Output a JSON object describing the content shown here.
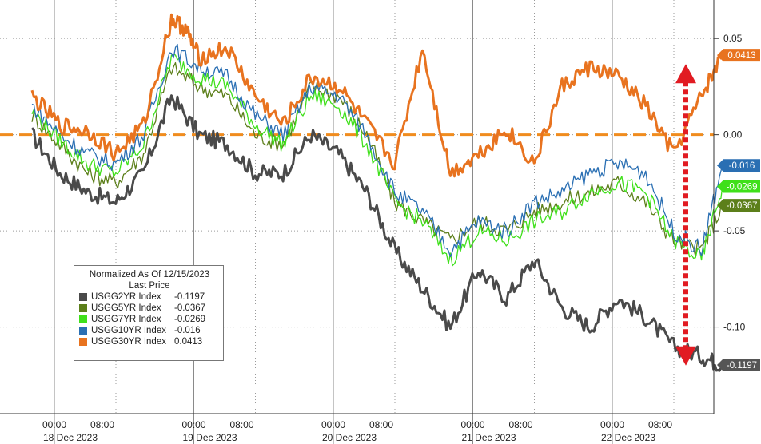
{
  "chart_data": {
    "type": "line",
    "title": "",
    "xlabel": "",
    "ylabel": "",
    "ylim": [
      -0.145,
      0.07
    ],
    "yticks": [
      0.05,
      0.0,
      -0.05,
      -0.1
    ],
    "ytick_labels": [
      "0.05",
      "0.00",
      "-0.05",
      "-0.10"
    ],
    "days": [
      "18 Dec 2023",
      "19 Dec 2023",
      "20 Dec 2023",
      "21 Dec 2023",
      "22 Dec 2023"
    ],
    "xtick_labels": [
      "00:00",
      "08:00",
      "00:00",
      "08:00",
      "00:00",
      "08:00",
      "00:00",
      "08:00",
      "00:00",
      "08:00"
    ],
    "grid": true,
    "reference_line": {
      "y": 0.0,
      "color": "#f08c1e",
      "style": "dashed"
    },
    "legend": {
      "position": "bottom-left",
      "title_line1": "Normalized As Of 12/15/2023",
      "title_line2": "Last Price",
      "entries": [
        {
          "name": "USGG2YR Index",
          "value": "-0.1197",
          "color": "#4a4a4a"
        },
        {
          "name": "USGG5YR Index",
          "value": "-0.0367",
          "color": "#5c7f1a"
        },
        {
          "name": "USGG7YR Index",
          "value": "-0.0269",
          "color": "#3fe01a"
        },
        {
          "name": "USGG10YR Index",
          "value": "-0.016",
          "color": "#2a6fb3"
        },
        {
          "name": "USGG30YR Index",
          "value": "0.0413",
          "color": "#e8731f"
        }
      ]
    },
    "last_value_tags": [
      {
        "label": "0.0413",
        "y": 0.0413,
        "color": "#e8731f"
      },
      {
        "label": "-0.016",
        "y": -0.016,
        "color": "#2a6fb3"
      },
      {
        "label": "-0.0269",
        "y": -0.0269,
        "color": "#3fe01a"
      },
      {
        "label": "-0.0367",
        "y": -0.0367,
        "color": "#5c7f1a"
      },
      {
        "label": "-0.1197",
        "y": -0.1197,
        "color": "#555555"
      }
    ],
    "annotation": {
      "type": "double-arrow",
      "color": "#e11b22",
      "from": 0.04,
      "to": -0.115
    },
    "series": [
      {
        "name": "USGG30YR Index",
        "color": "#e8731f",
        "x": [
          0,
          0.2,
          0.4,
          0.6,
          0.8,
          1.0,
          1.1,
          1.2,
          1.4,
          1.6,
          1.8,
          2.0,
          2.2,
          2.4,
          2.6,
          2.8,
          3.0,
          3.2,
          3.4,
          3.6,
          3.8,
          4.0,
          4.2,
          4.4,
          4.6,
          4.8,
          4.95
        ],
        "y": [
          0.02,
          0.005,
          0.002,
          -0.01,
          0.005,
          0.06,
          0.055,
          0.04,
          0.045,
          0.02,
          0.005,
          0.03,
          0.025,
          0.005,
          -0.015,
          0.045,
          -0.02,
          -0.01,
          0.003,
          -0.015,
          0.025,
          0.035,
          0.03,
          0.015,
          -0.01,
          0.02,
          0.0413
        ]
      },
      {
        "name": "USGG10YR Index",
        "color": "#2a6fb3",
        "x": [
          0,
          0.2,
          0.4,
          0.6,
          0.8,
          1.0,
          1.2,
          1.4,
          1.6,
          1.8,
          2.0,
          2.2,
          2.4,
          2.6,
          2.8,
          3.0,
          3.2,
          3.4,
          3.6,
          3.8,
          4.0,
          4.2,
          4.4,
          4.6,
          4.8,
          4.95
        ],
        "y": [
          0.015,
          0.0,
          -0.01,
          -0.015,
          0.0,
          0.045,
          0.035,
          0.03,
          0.01,
          0.0,
          0.025,
          0.02,
          0.0,
          -0.03,
          -0.04,
          -0.06,
          -0.045,
          -0.05,
          -0.035,
          -0.03,
          -0.02,
          -0.015,
          -0.02,
          -0.05,
          -0.06,
          -0.016
        ]
      },
      {
        "name": "USGG7YR Index",
        "color": "#3fe01a",
        "x": [
          0,
          0.2,
          0.4,
          0.6,
          0.8,
          1.0,
          1.2,
          1.4,
          1.6,
          1.8,
          2.0,
          2.2,
          2.4,
          2.6,
          2.8,
          3.0,
          3.2,
          3.4,
          3.6,
          3.8,
          4.0,
          4.2,
          4.4,
          4.6,
          4.8,
          4.95
        ],
        "y": [
          0.012,
          -0.003,
          -0.015,
          -0.02,
          -0.005,
          0.04,
          0.03,
          0.025,
          0.005,
          -0.005,
          0.02,
          0.015,
          -0.005,
          -0.035,
          -0.045,
          -0.065,
          -0.05,
          -0.055,
          -0.045,
          -0.04,
          -0.03,
          -0.025,
          -0.03,
          -0.055,
          -0.065,
          -0.0269
        ]
      },
      {
        "name": "USGG5YR Index",
        "color": "#5c7f1a",
        "x": [
          0,
          0.2,
          0.4,
          0.6,
          0.8,
          1.0,
          1.2,
          1.4,
          1.6,
          1.8,
          2.0,
          2.2,
          2.4,
          2.6,
          2.8,
          3.0,
          3.2,
          3.4,
          3.6,
          3.8,
          4.0,
          4.2,
          4.4,
          4.6,
          4.8,
          4.95
        ],
        "y": [
          0.01,
          -0.005,
          -0.02,
          -0.025,
          -0.01,
          0.035,
          0.025,
          0.02,
          0.0,
          -0.005,
          0.025,
          0.02,
          0.0,
          -0.035,
          -0.045,
          -0.055,
          -0.045,
          -0.05,
          -0.04,
          -0.035,
          -0.03,
          -0.025,
          -0.035,
          -0.055,
          -0.06,
          -0.0367
        ]
      },
      {
        "name": "USGG2YR Index",
        "color": "#4a4a4a",
        "x": [
          0,
          0.2,
          0.4,
          0.6,
          0.8,
          1.0,
          1.2,
          1.4,
          1.6,
          1.8,
          2.0,
          2.2,
          2.4,
          2.6,
          2.8,
          3.0,
          3.2,
          3.4,
          3.6,
          3.8,
          4.0,
          4.2,
          4.4,
          4.6,
          4.8,
          4.95
        ],
        "y": [
          0.0,
          -0.02,
          -0.03,
          -0.035,
          -0.02,
          0.02,
          0.0,
          -0.005,
          -0.02,
          -0.02,
          0.0,
          -0.01,
          -0.03,
          -0.06,
          -0.08,
          -0.1,
          -0.07,
          -0.085,
          -0.065,
          -0.09,
          -0.1,
          -0.085,
          -0.095,
          -0.11,
          -0.115,
          -0.1197
        ]
      }
    ]
  }
}
